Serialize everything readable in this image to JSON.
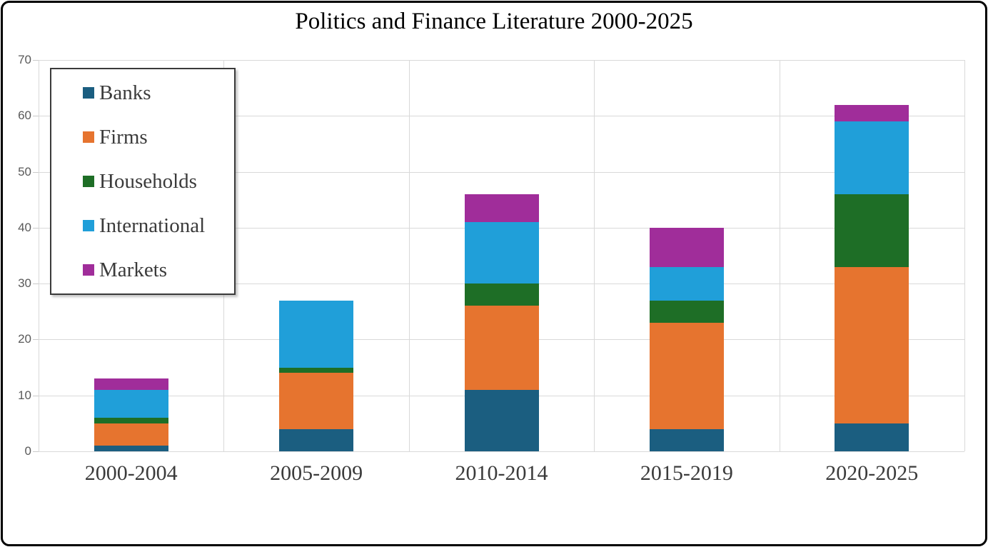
{
  "title": "Politics and Finance Literature 2000-2025",
  "chart_data": {
    "type": "bar",
    "stacked": true,
    "title": "Politics and Finance Literature 2000-2025",
    "categories": [
      "2000-2004",
      "2005-2009",
      "2010-2014",
      "2015-2019",
      "2020-2025"
    ],
    "series": [
      {
        "name": "Banks",
        "color": "#1B5E80",
        "values": [
          1,
          4,
          11,
          4,
          5
        ]
      },
      {
        "name": "Firms",
        "color": "#E6742F",
        "values": [
          4,
          10,
          15,
          19,
          28
        ]
      },
      {
        "name": "Households",
        "color": "#1E6E26",
        "values": [
          1,
          1,
          4,
          4,
          13
        ]
      },
      {
        "name": "International",
        "color": "#209FD9",
        "values": [
          5,
          12,
          11,
          6,
          13
        ]
      },
      {
        "name": "Markets",
        "color": "#A02D9A",
        "values": [
          2,
          0,
          5,
          7,
          3
        ]
      }
    ],
    "xlabel": "",
    "ylabel": "",
    "ylim": [
      0,
      70
    ],
    "yticks": [
      0,
      10,
      20,
      30,
      40,
      50,
      60,
      70
    ],
    "grid": true,
    "legend_position": "upper-left",
    "legend_entries": [
      "Banks",
      "Firms",
      "Households",
      "International",
      "Markets"
    ]
  },
  "colors": {
    "gridline": "#d9d9d9",
    "frame_border": "#000000",
    "title_text": "#000000",
    "axis_text": "#595959",
    "label_text": "#3b3b3b",
    "background": "#ffffff"
  }
}
